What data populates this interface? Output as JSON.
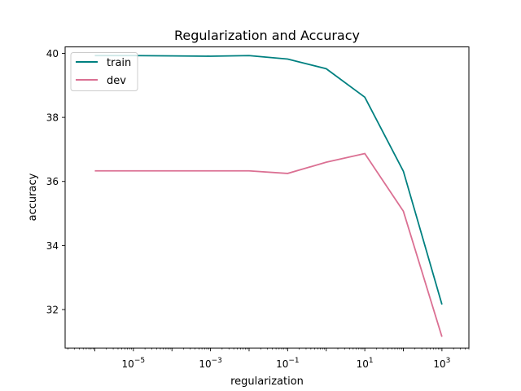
{
  "chart_data": {
    "type": "line",
    "title": "Regularization and Accuracy",
    "xlabel": "regularization",
    "ylabel": "accuracy",
    "xscale": "log",
    "x": [
      1e-06,
      1e-05,
      0.0001,
      0.001,
      0.01,
      0.1,
      1,
      10,
      100,
      1000
    ],
    "xlim": [
      1.7e-07,
      5000
    ],
    "ylim": [
      30.8,
      40.2
    ],
    "xticks": [
      {
        "value": 1e-05,
        "base": "10",
        "exp": "−5"
      },
      {
        "value": 0.001,
        "base": "10",
        "exp": "−3"
      },
      {
        "value": 0.1,
        "base": "10",
        "exp": "−1"
      },
      {
        "value": 10,
        "base": "10",
        "exp": "1"
      },
      {
        "value": 1000,
        "base": "10",
        "exp": "3"
      }
    ],
    "yticks": [
      32,
      34,
      36,
      38,
      40
    ],
    "grid": false,
    "legend_position": "top-left",
    "series": [
      {
        "name": "train",
        "color": "#008080",
        "values": [
          39.93,
          39.93,
          39.92,
          39.91,
          39.93,
          39.82,
          39.52,
          38.63,
          36.32,
          32.16
        ]
      },
      {
        "name": "dev",
        "color": "#db7093",
        "values": [
          36.33,
          36.33,
          36.33,
          36.33,
          36.33,
          36.25,
          36.6,
          36.87,
          35.07,
          31.15
        ]
      }
    ]
  }
}
